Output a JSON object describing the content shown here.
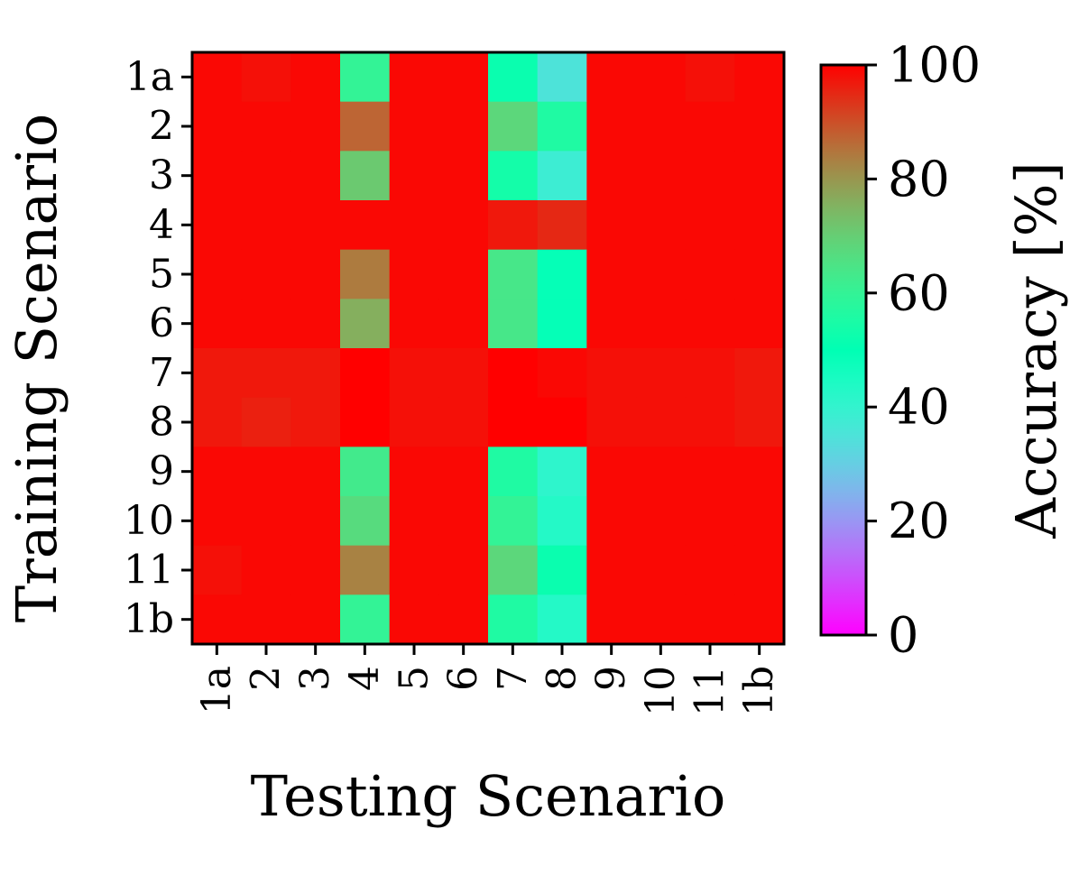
{
  "chart_data": {
    "type": "heatmap",
    "title": "",
    "xlabel": "Testing Scenario",
    "ylabel": "Training Scenario",
    "x_categories": [
      "1a",
      "2",
      "3",
      "4",
      "5",
      "6",
      "7",
      "8",
      "9",
      "10",
      "11",
      "1b"
    ],
    "y_categories": [
      "1a",
      "2",
      "3",
      "4",
      "5",
      "6",
      "7",
      "8",
      "9",
      "10",
      "11",
      "1b"
    ],
    "values": [
      [
        99,
        98,
        99,
        60,
        99,
        99,
        52,
        35,
        99,
        99,
        98,
        99
      ],
      [
        99,
        99,
        99,
        87,
        99,
        99,
        68,
        56,
        99,
        99,
        99,
        99
      ],
      [
        99,
        99,
        99,
        71,
        99,
        99,
        54,
        38,
        99,
        99,
        99,
        99
      ],
      [
        99,
        99,
        99,
        99,
        99,
        99,
        97,
        95,
        99,
        99,
        99,
        99
      ],
      [
        99,
        99,
        99,
        84,
        99,
        99,
        64,
        49,
        99,
        99,
        99,
        99
      ],
      [
        99,
        99,
        99,
        76,
        99,
        99,
        64,
        49,
        99,
        99,
        99,
        99
      ],
      [
        97,
        97,
        97,
        100,
        98,
        98,
        100,
        99,
        98,
        98,
        98,
        97
      ],
      [
        97,
        96,
        97,
        100,
        98,
        98,
        100,
        100,
        98,
        98,
        98,
        97
      ],
      [
        99,
        99,
        99,
        63,
        99,
        99,
        56,
        41,
        99,
        99,
        99,
        99
      ],
      [
        99,
        99,
        99,
        67,
        99,
        99,
        60,
        43,
        99,
        99,
        99,
        99
      ],
      [
        98,
        99,
        99,
        83,
        99,
        99,
        68,
        52,
        99,
        99,
        99,
        99
      ],
      [
        99,
        99,
        99,
        60,
        99,
        99,
        56,
        43,
        99,
        99,
        99,
        99
      ]
    ],
    "colorbar": {
      "label": "Accuracy [%]",
      "range": [
        0,
        100
      ],
      "ticks": [
        "0",
        "20",
        "40",
        "60",
        "80",
        "100"
      ],
      "colormap": "rainbow"
    }
  }
}
